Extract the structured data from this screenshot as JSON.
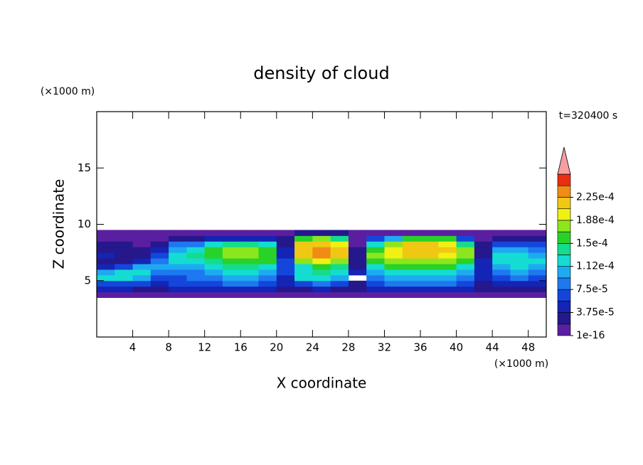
{
  "chart_data": {
    "type": "contour",
    "title": "density of cloud",
    "xlabel": "X coordinate",
    "ylabel": "Z coordinate",
    "x_unit": "(×1000 m)",
    "y_unit": "(×1000 m)",
    "time_label": "t=320400 s",
    "xlim": [
      0,
      50
    ],
    "ylim": [
      0,
      20
    ],
    "xticks": [
      4,
      8,
      12,
      16,
      20,
      24,
      28,
      32,
      36,
      40,
      44,
      48
    ],
    "yticks": [
      5,
      10,
      15
    ],
    "x": [
      1,
      3,
      5,
      7,
      9,
      11,
      13,
      15,
      17,
      19,
      21,
      23,
      25,
      27,
      29,
      31,
      33,
      35,
      37,
      39,
      41,
      43,
      45,
      47,
      49
    ],
    "z": [
      3.75,
      4.25,
      4.75,
      5.25,
      5.75,
      6.25,
      6.75,
      7.25,
      7.75,
      8.25,
      8.75,
      9.25
    ],
    "values": [
      [
        1e-05,
        4e-05,
        6e-05,
        0.00012,
        0.00011,
        5e-05,
        2e-05,
        4e-05,
        3e-05,
        2e-05,
        1e-05,
        1e-05
      ],
      [
        1e-05,
        4e-05,
        7e-05,
        0.00013,
        0.00012,
        6e-05,
        3e-05,
        2e-05,
        2e-05,
        2e-05,
        1e-05,
        1e-05
      ],
      [
        1e-05,
        3e-05,
        6e-05,
        0.0001,
        0.00012,
        0.0001,
        4e-05,
        2e-05,
        2e-05,
        1e-05,
        1e-05,
        1e-05
      ],
      [
        1e-05,
        3e-05,
        5e-05,
        6e-05,
        8e-05,
        0.0001,
        9e-05,
        6e-05,
        4e-05,
        2e-05,
        1e-05,
        1e-05
      ],
      [
        1e-05,
        4e-05,
        6e-05,
        7e-05,
        9e-05,
        0.00011,
        0.00012,
        0.00013,
        0.00011,
        8e-05,
        3e-05,
        1e-05
      ],
      [
        1e-05,
        4e-05,
        6e-05,
        8e-05,
        9e-05,
        0.0001,
        0.00012,
        0.00014,
        0.00013,
        9e-05,
        3e-05,
        1e-05
      ],
      [
        1e-05,
        5e-05,
        7e-05,
        8e-05,
        0.0001,
        0.00012,
        0.00014,
        0.00016,
        0.00015,
        0.00012,
        4e-05,
        1e-05
      ],
      [
        1e-05,
        5e-05,
        8e-05,
        0.0001,
        0.00012,
        0.00014,
        0.00016,
        0.00017,
        0.00017,
        0.00014,
        5e-05,
        1e-05
      ],
      [
        1e-05,
        5e-05,
        8e-05,
        0.0001,
        0.00012,
        0.00014,
        0.00016,
        0.00018,
        0.00017,
        0.00014,
        5e-05,
        1e-05
      ],
      [
        1e-05,
        4e-05,
        7e-05,
        9e-05,
        0.00011,
        0.00013,
        0.00015,
        0.00016,
        0.00015,
        0.00012,
        4e-05,
        1e-05
      ],
      [
        1e-05,
        2e-05,
        4e-05,
        5e-05,
        6e-05,
        7e-05,
        6e-05,
        5e-05,
        4e-05,
        3e-05,
        2e-05,
        1e-05
      ],
      [
        1e-05,
        3e-05,
        6e-05,
        0.00012,
        0.00013,
        0.00012,
        0.00017,
        0.00021,
        0.00022,
        0.00021,
        0.00016,
        2e-05
      ],
      [
        1e-05,
        4e-05,
        8e-05,
        0.00013,
        0.00014,
        0.00015,
        0.00019,
        0.00023,
        0.00024,
        0.00022,
        0.00017,
        3e-05
      ],
      [
        1e-05,
        3e-05,
        6e-05,
        0.0001,
        0.00012,
        0.00014,
        0.00018,
        0.00021,
        0.00022,
        0.0002,
        0.00014,
        2e-05
      ],
      [
        1e-05,
        2e-05,
        3e-05,
        null,
        4e-05,
        3e-05,
        2e-05,
        2e-05,
        2e-05,
        1e-05,
        1e-05,
        1e-05
      ],
      [
        1e-05,
        4e-05,
        7e-05,
        9e-05,
        0.00011,
        0.00013,
        0.00015,
        0.00017,
        0.00016,
        0.00013,
        6e-05,
        1e-05
      ],
      [
        1e-05,
        4e-05,
        8e-05,
        0.0001,
        0.00012,
        0.00015,
        0.00017,
        0.00019,
        0.0002,
        0.00018,
        0.0001,
        1e-05
      ],
      [
        1e-05,
        5e-05,
        8e-05,
        0.0001,
        0.00013,
        0.00016,
        0.00018,
        0.00021,
        0.00022,
        0.00021,
        0.00016,
        1e-05
      ],
      [
        1e-05,
        5e-05,
        8e-05,
        0.00011,
        0.00013,
        0.00016,
        0.00018,
        0.00021,
        0.00022,
        0.00021,
        0.00016,
        1e-05
      ],
      [
        1e-05,
        5e-05,
        8e-05,
        0.0001,
        0.00012,
        0.00015,
        0.00018,
        0.0002,
        0.00021,
        0.0002,
        0.00015,
        1e-05
      ],
      [
        1e-05,
        4e-05,
        7e-05,
        9e-05,
        0.00011,
        0.00013,
        0.00016,
        0.00018,
        0.00017,
        0.00014,
        6e-05,
        1e-05
      ],
      [
        1e-05,
        2e-05,
        3e-05,
        4e-05,
        4e-05,
        5e-05,
        4e-05,
        3e-05,
        2e-05,
        2e-05,
        1e-05,
        1e-05
      ],
      [
        1e-05,
        3e-05,
        5e-05,
        7e-05,
        9e-05,
        0.00011,
        0.00013,
        0.00012,
        0.0001,
        6e-05,
        2e-05,
        1e-05
      ],
      [
        1e-05,
        3e-05,
        5e-05,
        8e-05,
        0.0001,
        0.00012,
        0.00013,
        0.00013,
        0.00011,
        7e-05,
        2e-05,
        1e-05
      ],
      [
        1e-05,
        3e-05,
        5e-05,
        7e-05,
        9e-05,
        0.00011,
        0.00012,
        0.00011,
        9e-05,
        6e-05,
        2e-05,
        1e-05
      ]
    ],
    "levels": [
      1e-16,
      1.875e-05,
      3.75e-05,
      5.625e-05,
      7.5e-05,
      9.375e-05,
      0.0001125,
      0.00013125,
      0.00015,
      0.00016875,
      0.0001875,
      0.00020625,
      0.000225,
      0.00024375,
      0.0002625
    ],
    "colors": [
      "#5a1fa0",
      "#24188c",
      "#1424b4",
      "#1446dc",
      "#1e78f0",
      "#1eaaf0",
      "#14dcd2",
      "#14dc8c",
      "#28d228",
      "#8ce61e",
      "#f0f014",
      "#f0c814",
      "#f08c14",
      "#eb2d14"
    ],
    "extend_color": "#f4a0a0",
    "colorbar_ticks": [
      {
        "value": 1e-16,
        "label": "1e-16"
      },
      {
        "value": 3.75e-05,
        "label": "3.75e-5"
      },
      {
        "value": 7.5e-05,
        "label": "7.5e-5"
      },
      {
        "value": 0.0001125,
        "label": "1.12e-4"
      },
      {
        "value": 0.00015,
        "label": "1.5e-4"
      },
      {
        "value": 0.0001875,
        "label": "1.88e-4"
      },
      {
        "value": 0.000225,
        "label": "2.25e-4"
      }
    ]
  }
}
